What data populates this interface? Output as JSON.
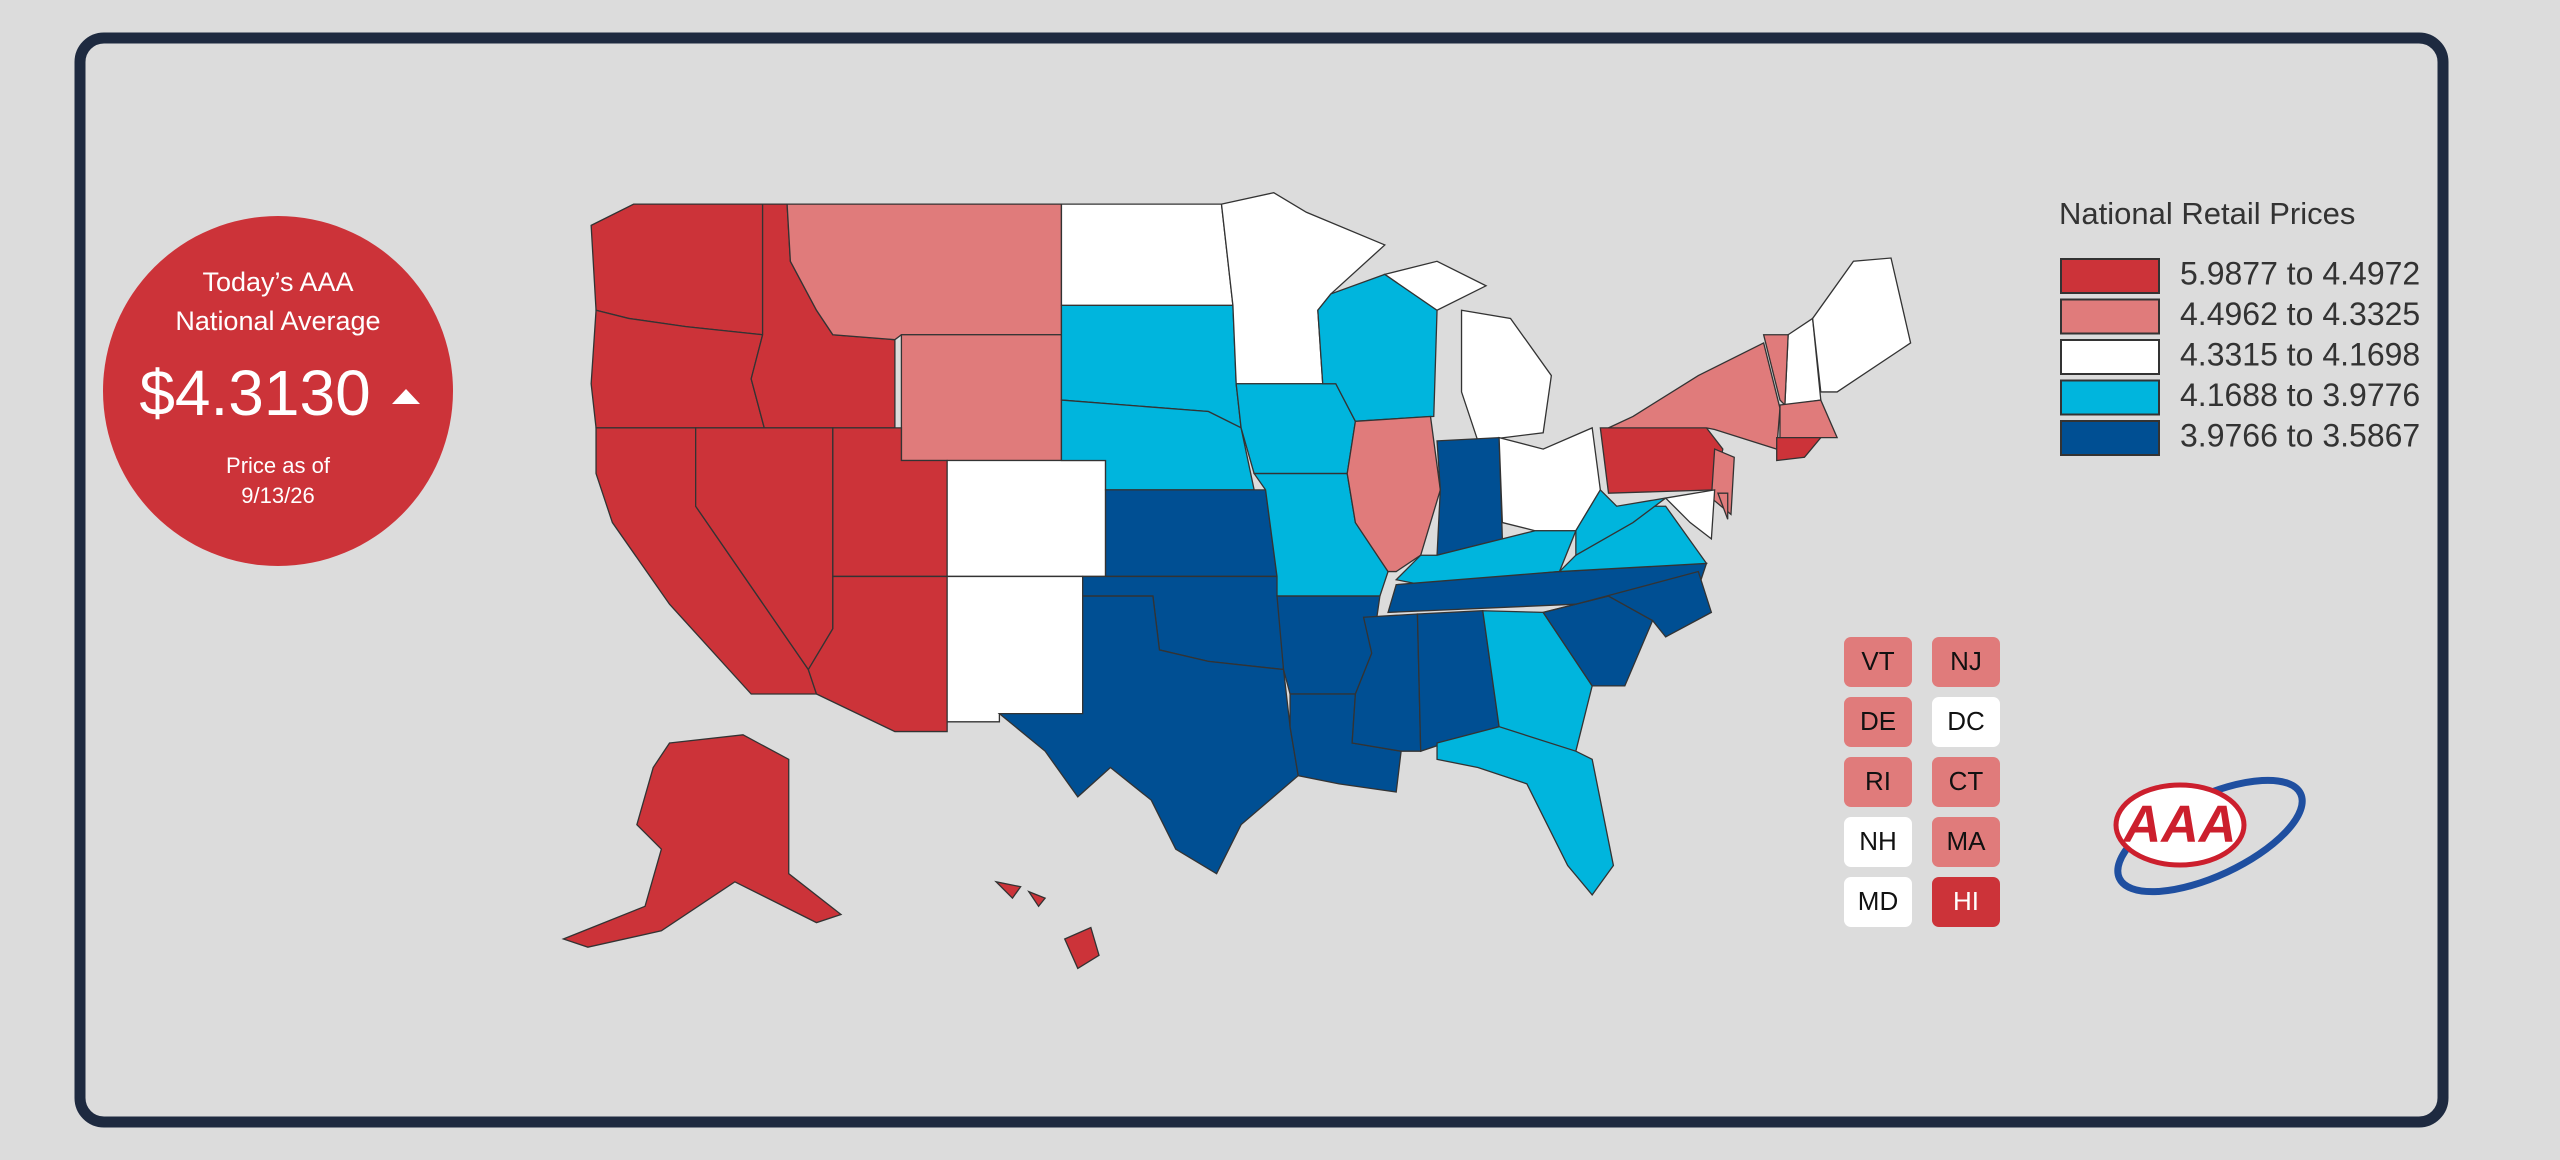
{
  "badge": {
    "line1": "Today’s AAA",
    "line2": "National Average",
    "price": "$4.3130",
    "date_label": "Price as of",
    "date": "9/13/26",
    "color": "#cc3339"
  },
  "legend": {
    "title": "National Retail Prices",
    "items": [
      {
        "label": "5.9877 to 4.4972",
        "color": "#cc3339"
      },
      {
        "label": "4.4962 to 4.3325",
        "color": "#e07b7b"
      },
      {
        "label": "4.3315 to 4.1698",
        "color": "#ffffff"
      },
      {
        "label": "4.1688 to 3.9776",
        "color": "#00b5dd"
      },
      {
        "label": "3.9766 to 3.5867",
        "color": "#004f93"
      }
    ]
  },
  "small_states": [
    {
      "label": "VT",
      "tier": 1
    },
    {
      "label": "NJ",
      "tier": 1
    },
    {
      "label": "DE",
      "tier": 1
    },
    {
      "label": "DC",
      "tier": 2
    },
    {
      "label": "RI",
      "tier": 1
    },
    {
      "label": "CT",
      "tier": 1
    },
    {
      "label": "NH",
      "tier": 2
    },
    {
      "label": "MA",
      "tier": 1
    },
    {
      "label": "MD",
      "tier": 2
    },
    {
      "label": "HI",
      "tier": 0
    }
  ],
  "map": {
    "regions": [
      0,
      0,
      0,
      1,
      1,
      0,
      0,
      0,
      0,
      2,
      2,
      2,
      3,
      3,
      4,
      4,
      4,
      2,
      3,
      3,
      4,
      4,
      3,
      1,
      2,
      2,
      4,
      2,
      3,
      4,
      4,
      4,
      3,
      3,
      4,
      4,
      3,
      3,
      0,
      1,
      1,
      2,
      1,
      2,
      2,
      1,
      1,
      0,
      0,
      0
    ]
  },
  "logo": "AAA"
}
